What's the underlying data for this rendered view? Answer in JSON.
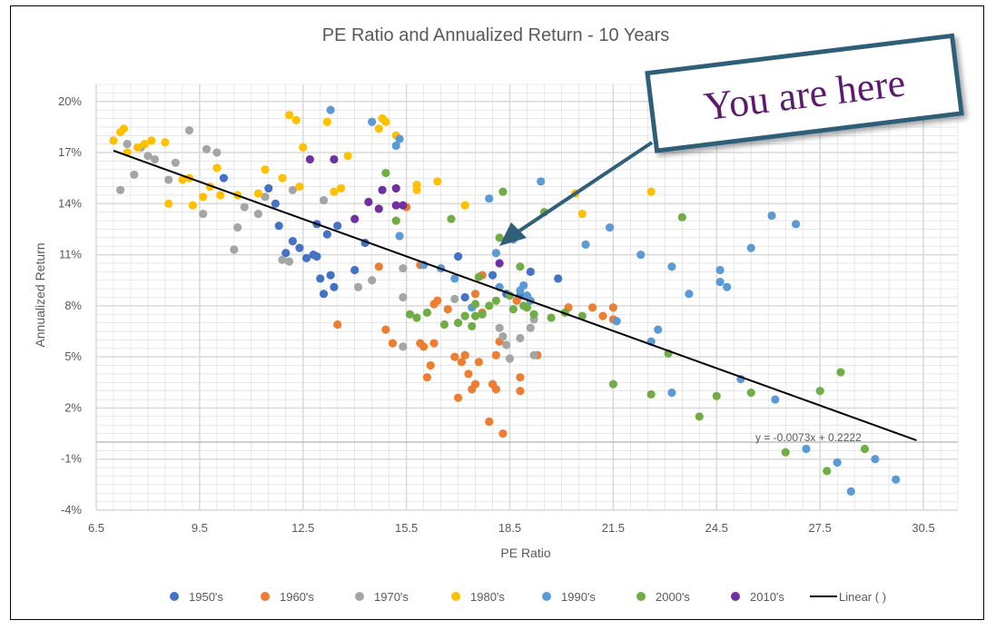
{
  "chart_data": {
    "type": "scatter",
    "title": "PE Ratio and Annualized Return - 10 Years",
    "xlabel": "PE Ratio",
    "ylabel": "Annualized Return",
    "xlim": [
      6.5,
      31.5
    ],
    "ylim": [
      -0.04,
      0.21
    ],
    "x_ticks": [
      6.5,
      9.5,
      12.5,
      15.5,
      18.5,
      21.5,
      24.5,
      27.5,
      30.5
    ],
    "x_tick_labels": [
      "6.5",
      "9.5",
      "12.5",
      "15.5",
      "18.5",
      "21.5",
      "24.5",
      "27.5",
      "30.5"
    ],
    "y_ticks": [
      -0.04,
      -0.01,
      0.02,
      0.05,
      0.08,
      0.11,
      0.14,
      0.17,
      0.2
    ],
    "y_tick_labels": [
      "-4%",
      "-1%",
      "2%",
      "5%",
      "8%",
      "11%",
      "14%",
      "17%",
      "20%"
    ],
    "grid": true,
    "legend_position": "bottom",
    "series": [
      {
        "name": "1950's",
        "color": "#4472c4",
        "points": [
          [
            11.5,
            0.149
          ],
          [
            12.0,
            0.111
          ],
          [
            12.2,
            0.118
          ],
          [
            12.4,
            0.114
          ],
          [
            12.6,
            0.108
          ],
          [
            12.8,
            0.11
          ],
          [
            12.9,
            0.109
          ],
          [
            13.0,
            0.096
          ],
          [
            13.2,
            0.122
          ],
          [
            13.3,
            0.098
          ],
          [
            13.4,
            0.091
          ],
          [
            13.1,
            0.087
          ],
          [
            13.5,
            0.127
          ],
          [
            14.0,
            0.101
          ],
          [
            14.3,
            0.117
          ],
          [
            11.8,
            0.127
          ],
          [
            11.7,
            0.14
          ],
          [
            10.2,
            0.155
          ],
          [
            12.9,
            0.128
          ],
          [
            17.0,
            0.109
          ],
          [
            17.2,
            0.085
          ],
          [
            18.0,
            0.098
          ],
          [
            18.4,
            0.087
          ],
          [
            18.8,
            0.086
          ],
          [
            19.1,
            0.1
          ],
          [
            19.9,
            0.096
          ]
        ]
      },
      {
        "name": "1960's",
        "color": "#ed7d31",
        "points": [
          [
            13.5,
            0.069
          ],
          [
            14.7,
            0.103
          ],
          [
            14.9,
            0.066
          ],
          [
            15.1,
            0.058
          ],
          [
            15.5,
            0.138
          ],
          [
            15.9,
            0.058
          ],
          [
            16.0,
            0.056
          ],
          [
            16.1,
            0.038
          ],
          [
            16.2,
            0.045
          ],
          [
            16.3,
            0.081
          ],
          [
            16.4,
            0.083
          ],
          [
            16.3,
            0.058
          ],
          [
            16.9,
            0.05
          ],
          [
            17.0,
            0.026
          ],
          [
            17.1,
            0.047
          ],
          [
            17.2,
            0.051
          ],
          [
            17.3,
            0.04
          ],
          [
            17.4,
            0.031
          ],
          [
            17.5,
            0.087
          ],
          [
            17.5,
            0.034
          ],
          [
            17.6,
            0.047
          ],
          [
            17.7,
            0.076
          ],
          [
            17.9,
            0.012
          ],
          [
            18.0,
            0.034
          ],
          [
            18.1,
            0.031
          ],
          [
            18.1,
            0.051
          ],
          [
            18.2,
            0.059
          ],
          [
            18.3,
            0.005
          ],
          [
            18.7,
            0.083
          ],
          [
            18.8,
            0.038
          ],
          [
            18.8,
            0.03
          ],
          [
            19.3,
            0.051
          ],
          [
            20.2,
            0.079
          ],
          [
            20.9,
            0.079
          ],
          [
            21.2,
            0.074
          ],
          [
            21.5,
            0.079
          ],
          [
            21.5,
            0.072
          ],
          [
            15.9,
            0.104
          ],
          [
            17.7,
            0.098
          ],
          [
            16.7,
            0.078
          ]
        ]
      },
      {
        "name": "1970's",
        "color": "#a5a5a5",
        "points": [
          [
            7.2,
            0.148
          ],
          [
            7.4,
            0.175
          ],
          [
            7.6,
            0.157
          ],
          [
            7.8,
            0.173
          ],
          [
            8.0,
            0.168
          ],
          [
            8.2,
            0.166
          ],
          [
            8.6,
            0.154
          ],
          [
            8.8,
            0.164
          ],
          [
            9.2,
            0.183
          ],
          [
            9.6,
            0.134
          ],
          [
            9.7,
            0.172
          ],
          [
            10.0,
            0.17
          ],
          [
            10.5,
            0.113
          ],
          [
            10.6,
            0.126
          ],
          [
            10.8,
            0.138
          ],
          [
            11.2,
            0.134
          ],
          [
            11.4,
            0.144
          ],
          [
            11.9,
            0.107
          ],
          [
            12.1,
            0.106
          ],
          [
            12.2,
            0.148
          ],
          [
            13.1,
            0.142
          ],
          [
            14.1,
            0.091
          ],
          [
            14.5,
            0.095
          ],
          [
            15.4,
            0.085
          ],
          [
            15.4,
            0.056
          ],
          [
            15.4,
            0.102
          ],
          [
            16.9,
            0.084
          ],
          [
            18.2,
            0.067
          ],
          [
            18.4,
            0.057
          ],
          [
            18.5,
            0.049
          ],
          [
            18.8,
            0.061
          ],
          [
            19.1,
            0.067
          ],
          [
            19.2,
            0.072
          ],
          [
            19.2,
            0.051
          ],
          [
            18.3,
            0.062
          ]
        ]
      },
      {
        "name": "1980's",
        "color": "#ffc000",
        "points": [
          [
            7.0,
            0.177
          ],
          [
            7.2,
            0.182
          ],
          [
            7.3,
            0.184
          ],
          [
            7.4,
            0.17
          ],
          [
            7.7,
            0.173
          ],
          [
            7.9,
            0.175
          ],
          [
            8.1,
            0.177
          ],
          [
            8.5,
            0.176
          ],
          [
            8.6,
            0.14
          ],
          [
            9.0,
            0.154
          ],
          [
            9.2,
            0.155
          ],
          [
            9.3,
            0.139
          ],
          [
            9.6,
            0.144
          ],
          [
            9.8,
            0.15
          ],
          [
            10.0,
            0.161
          ],
          [
            10.1,
            0.145
          ],
          [
            10.6,
            0.145
          ],
          [
            11.2,
            0.146
          ],
          [
            11.4,
            0.16
          ],
          [
            11.9,
            0.155
          ],
          [
            12.1,
            0.192
          ],
          [
            12.3,
            0.189
          ],
          [
            12.5,
            0.173
          ],
          [
            12.4,
            0.15
          ],
          [
            13.2,
            0.188
          ],
          [
            13.4,
            0.147
          ],
          [
            13.6,
            0.149
          ],
          [
            13.8,
            0.168
          ],
          [
            14.7,
            0.184
          ],
          [
            14.8,
            0.19
          ],
          [
            14.9,
            0.188
          ],
          [
            15.2,
            0.18
          ],
          [
            15.8,
            0.151
          ],
          [
            16.4,
            0.153
          ],
          [
            17.2,
            0.139
          ],
          [
            20.4,
            0.146
          ],
          [
            20.6,
            0.134
          ],
          [
            22.6,
            0.147
          ],
          [
            15.8,
            0.148
          ]
        ]
      },
      {
        "name": "1990's",
        "color": "#5b9bd5",
        "points": [
          [
            13.3,
            0.195
          ],
          [
            14.5,
            0.188
          ],
          [
            15.2,
            0.174
          ],
          [
            15.3,
            0.178
          ],
          [
            15.3,
            0.121
          ],
          [
            16.0,
            0.104
          ],
          [
            16.5,
            0.102
          ],
          [
            16.9,
            0.096
          ],
          [
            17.4,
            0.079
          ],
          [
            17.9,
            0.143
          ],
          [
            18.1,
            0.111
          ],
          [
            18.2,
            0.091
          ],
          [
            18.6,
            0.119
          ],
          [
            18.9,
            0.092
          ],
          [
            19.0,
            0.086
          ],
          [
            19.1,
            0.083
          ],
          [
            19.4,
            0.153
          ],
          [
            20.7,
            0.116
          ],
          [
            21.4,
            0.126
          ],
          [
            21.6,
            0.071
          ],
          [
            22.3,
            0.11
          ],
          [
            22.6,
            0.059
          ],
          [
            22.8,
            0.066
          ],
          [
            23.2,
            0.103
          ],
          [
            23.2,
            0.029
          ],
          [
            23.7,
            0.087
          ],
          [
            24.6,
            0.101
          ],
          [
            24.6,
            0.094
          ],
          [
            24.8,
            0.091
          ],
          [
            25.2,
            0.037
          ],
          [
            25.5,
            0.114
          ],
          [
            26.1,
            0.133
          ],
          [
            26.2,
            0.025
          ],
          [
            26.8,
            0.128
          ],
          [
            27.1,
            -0.004
          ],
          [
            28.0,
            -0.012
          ],
          [
            28.4,
            -0.029
          ],
          [
            29.1,
            -0.01
          ],
          [
            29.7,
            -0.022
          ],
          [
            18.8,
            0.089
          ]
        ]
      },
      {
        "name": "2000's",
        "color": "#70ad47",
        "points": [
          [
            14.9,
            0.158
          ],
          [
            15.6,
            0.075
          ],
          [
            15.8,
            0.073
          ],
          [
            16.1,
            0.076
          ],
          [
            16.6,
            0.069
          ],
          [
            16.8,
            0.131
          ],
          [
            17.0,
            0.07
          ],
          [
            17.2,
            0.074
          ],
          [
            17.4,
            0.068
          ],
          [
            17.5,
            0.081
          ],
          [
            17.6,
            0.097
          ],
          [
            17.7,
            0.075
          ],
          [
            17.9,
            0.08
          ],
          [
            18.1,
            0.083
          ],
          [
            18.2,
            0.12
          ],
          [
            18.3,
            0.147
          ],
          [
            18.5,
            0.086
          ],
          [
            18.6,
            0.078
          ],
          [
            18.8,
            0.103
          ],
          [
            18.9,
            0.08
          ],
          [
            19.0,
            0.079
          ],
          [
            19.2,
            0.075
          ],
          [
            19.5,
            0.135
          ],
          [
            19.7,
            0.073
          ],
          [
            20.1,
            0.076
          ],
          [
            20.6,
            0.074
          ],
          [
            21.5,
            0.034
          ],
          [
            22.6,
            0.028
          ],
          [
            23.1,
            0.052
          ],
          [
            23.5,
            0.132
          ],
          [
            24.0,
            0.015
          ],
          [
            24.5,
            0.027
          ],
          [
            25.5,
            0.029
          ],
          [
            26.5,
            -0.006
          ],
          [
            27.5,
            0.03
          ],
          [
            27.7,
            -0.017
          ],
          [
            28.1,
            0.041
          ],
          [
            28.8,
            -0.004
          ],
          [
            15.2,
            0.13
          ],
          [
            17.5,
            0.074
          ]
        ]
      },
      {
        "name": "2010's",
        "color": "#7030a0",
        "points": [
          [
            12.7,
            0.166
          ],
          [
            13.4,
            0.166
          ],
          [
            14.0,
            0.131
          ],
          [
            14.4,
            0.141
          ],
          [
            14.7,
            0.137
          ],
          [
            14.8,
            0.148
          ],
          [
            15.2,
            0.139
          ],
          [
            15.2,
            0.149
          ],
          [
            15.4,
            0.139
          ],
          [
            18.2,
            0.105
          ]
        ]
      }
    ],
    "trendline": {
      "name": "Linear ( )",
      "color": "#000000",
      "slope": -0.0073,
      "intercept": 0.2222,
      "x_range": [
        7.0,
        30.3
      ],
      "equation_label": "y = -0.0073x + 0.2222"
    },
    "annotation": {
      "text": "You are here",
      "border_color": "#2f5f79",
      "text_color": "#5b1a6e",
      "arrow_color": "#2f5f79"
    },
    "gridline_color": "#d9d9d9",
    "zero_line_color": "#bfbfbf"
  }
}
